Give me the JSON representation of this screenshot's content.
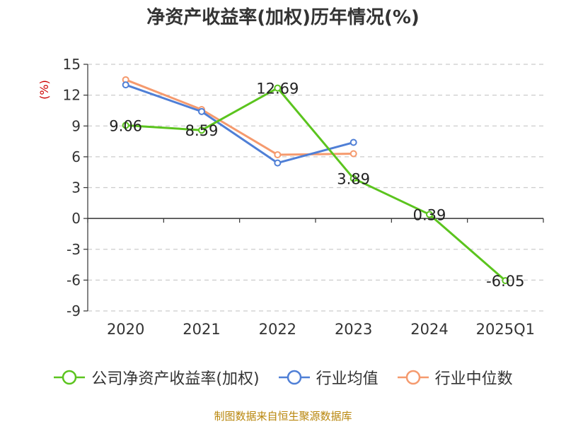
{
  "title": "净资产收益率(加权)历年情况(%)",
  "source": "制图数据来自恒生聚源数据库",
  "colors": {
    "axis": "#333333",
    "grid": "#cccccc",
    "ylabel": "#cc0000",
    "text": "#333333"
  },
  "chart_data": {
    "type": "line",
    "title": "净资产收益率(加权)历年情况(%)",
    "xlabel": "",
    "ylabel": "(%)",
    "categories": [
      "2020",
      "2021",
      "2022",
      "2023",
      "2024",
      "2025Q1"
    ],
    "ylim": [
      -9,
      15
    ],
    "yticks": [
      15,
      12,
      9,
      6,
      3,
      0,
      -3,
      -6,
      -9
    ],
    "grid": true,
    "legend_position": "bottom",
    "series": [
      {
        "name": "公司净资产收益率(加权)",
        "color": "#5bc41e",
        "values": [
          9.06,
          8.59,
          12.69,
          3.89,
          0.39,
          -6.05
        ],
        "labels": [
          "9.06",
          "8.59",
          "12.69",
          "3.89",
          "0.39",
          "-6.05"
        ]
      },
      {
        "name": "行业均值",
        "color": "#4f7fd6",
        "values": [
          13.0,
          10.4,
          5.4,
          7.4,
          null,
          null
        ]
      },
      {
        "name": "行业中位数",
        "color": "#f59a6e",
        "values": [
          13.5,
          10.6,
          6.2,
          6.3,
          null,
          null
        ]
      }
    ]
  }
}
